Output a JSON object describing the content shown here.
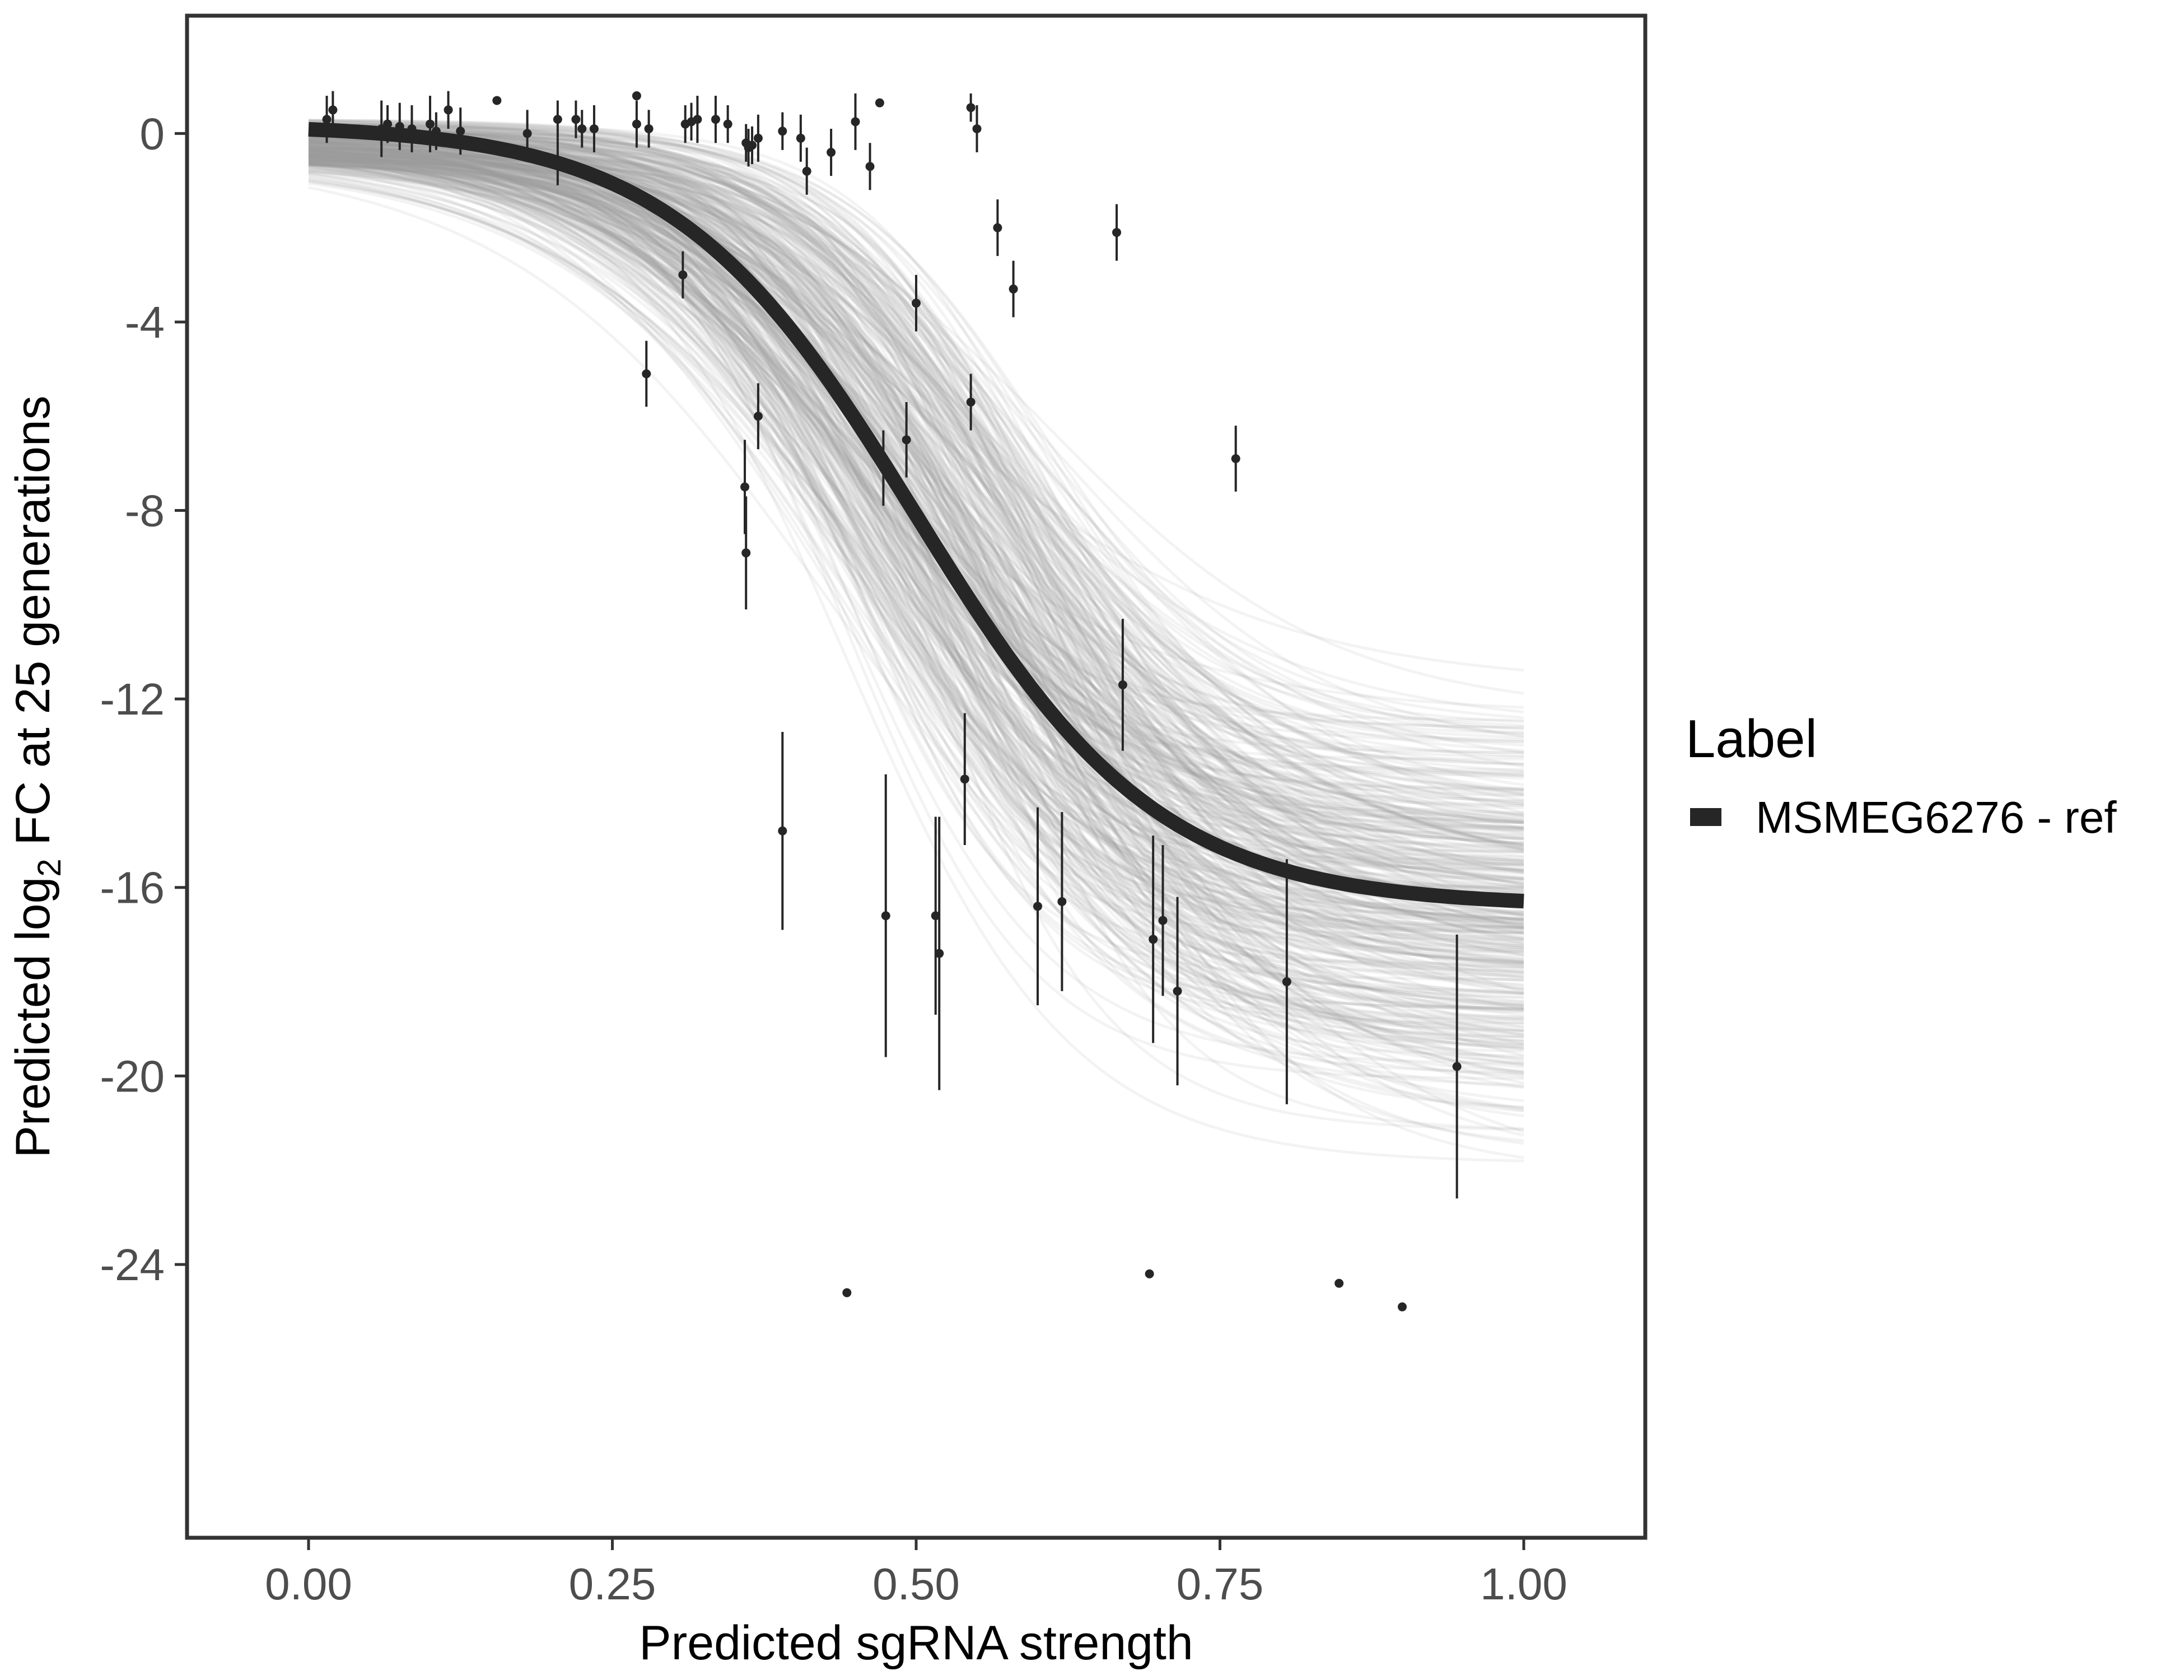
{
  "chart_data": {
    "type": "scatter",
    "title": "",
    "xlabel": "Predicted sgRNA strength",
    "ylabel_parts": {
      "prefix": "Predicted  log",
      "sub": "2",
      "suffix": " FC at 25 generations"
    },
    "xlim": [
      -0.1,
      1.1
    ],
    "ylim": [
      -29.8,
      2.5
    ],
    "x_ticks": [
      0.0,
      0.25,
      0.5,
      0.75,
      1.0
    ],
    "x_tick_labels": [
      "0.00",
      "0.25",
      "0.50",
      "0.75",
      "1.00"
    ],
    "y_ticks": [
      0,
      -4,
      -8,
      -12,
      -16,
      -20,
      -24
    ],
    "y_tick_labels": [
      "0",
      "-4",
      "-8",
      "-12",
      "-16",
      "-20",
      "-24"
    ],
    "grid": false,
    "legend": {
      "title": "Label",
      "position": "right",
      "entries": [
        {
          "label": "MSMEG6276 - ref",
          "color": "#262626"
        }
      ]
    },
    "fit_curve": {
      "name": "MSMEG6276 - ref",
      "model": "logistic",
      "top": 0.2,
      "bottom": -16.4,
      "midpoint": 0.5,
      "slope": 10,
      "color": "#262626"
    },
    "posterior_draws": {
      "count": 400,
      "color": "#999999",
      "bottom_range": [
        -23.8,
        -10.2
      ],
      "midpoint_range": [
        0.43,
        0.62
      ],
      "slope_range": [
        7,
        14
      ]
    },
    "points": [
      {
        "x": 0.015,
        "y": 0.3,
        "err": 0.5
      },
      {
        "x": 0.02,
        "y": 0.5,
        "err": 0.4
      },
      {
        "x": 0.06,
        "y": 0.1,
        "err": 0.6
      },
      {
        "x": 0.065,
        "y": 0.2,
        "err": 0.4
      },
      {
        "x": 0.075,
        "y": 0.15,
        "err": 0.5
      },
      {
        "x": 0.085,
        "y": 0.1,
        "err": 0.5
      },
      {
        "x": 0.1,
        "y": 0.2,
        "err": 0.6
      },
      {
        "x": 0.105,
        "y": 0.05,
        "err": 0.4
      },
      {
        "x": 0.115,
        "y": 0.5,
        "err": 0.4
      },
      {
        "x": 0.125,
        "y": 0.05,
        "err": 0.5
      },
      {
        "x": 0.155,
        "y": 0.7,
        "err": null
      },
      {
        "x": 0.18,
        "y": 0.0,
        "err": 0.5
      },
      {
        "x": 0.205,
        "y": 0.3,
        "err": 0.4
      },
      {
        "x": 0.205,
        "y": -0.6,
        "err": 0.5
      },
      {
        "x": 0.22,
        "y": 0.3,
        "err": 0.4
      },
      {
        "x": 0.225,
        "y": 0.1,
        "err": 0.4
      },
      {
        "x": 0.235,
        "y": 0.1,
        "err": 0.5
      },
      {
        "x": 0.27,
        "y": 0.8,
        "err": null
      },
      {
        "x": 0.27,
        "y": 0.2,
        "err": 0.5
      },
      {
        "x": 0.28,
        "y": 0.1,
        "err": 0.4
      },
      {
        "x": 0.278,
        "y": -5.1,
        "err": 0.7
      },
      {
        "x": 0.308,
        "y": -3.0,
        "err": 0.5
      },
      {
        "x": 0.31,
        "y": 0.2,
        "err": 0.4
      },
      {
        "x": 0.315,
        "y": 0.25,
        "err": 0.4
      },
      {
        "x": 0.32,
        "y": 0.3,
        "err": 0.5
      },
      {
        "x": 0.335,
        "y": 0.3,
        "err": 0.5
      },
      {
        "x": 0.345,
        "y": 0.2,
        "err": 0.4
      },
      {
        "x": 0.36,
        "y": -0.2,
        "err": 0.4
      },
      {
        "x": 0.362,
        "y": -0.3,
        "err": 0.4
      },
      {
        "x": 0.365,
        "y": -0.25,
        "err": 0.4
      },
      {
        "x": 0.37,
        "y": -0.1,
        "err": 0.5
      },
      {
        "x": 0.359,
        "y": -7.5,
        "err": 1.0
      },
      {
        "x": 0.36,
        "y": -8.9,
        "err": 1.2
      },
      {
        "x": 0.37,
        "y": -6.0,
        "err": 0.7
      },
      {
        "x": 0.39,
        "y": 0.05,
        "err": 0.4
      },
      {
        "x": 0.39,
        "y": -14.8,
        "err": 2.1
      },
      {
        "x": 0.405,
        "y": -0.1,
        "err": 0.5
      },
      {
        "x": 0.41,
        "y": -0.8,
        "err": 0.5
      },
      {
        "x": 0.43,
        "y": -0.4,
        "err": 0.5
      },
      {
        "x": 0.443,
        "y": -24.6,
        "err": null
      },
      {
        "x": 0.45,
        "y": 0.25,
        "err": 0.6
      },
      {
        "x": 0.462,
        "y": -0.7,
        "err": 0.5
      },
      {
        "x": 0.47,
        "y": 0.65,
        "err": null
      },
      {
        "x": 0.473,
        "y": -7.1,
        "err": 0.8
      },
      {
        "x": 0.475,
        "y": -16.6,
        "err": 3.0
      },
      {
        "x": 0.492,
        "y": -6.5,
        "err": 0.8
      },
      {
        "x": 0.5,
        "y": -3.6,
        "err": 0.6
      },
      {
        "x": 0.516,
        "y": -16.6,
        "err": 2.1
      },
      {
        "x": 0.519,
        "y": -17.4,
        "err": 2.9
      },
      {
        "x": 0.54,
        "y": -13.7,
        "err": 1.4
      },
      {
        "x": 0.545,
        "y": 0.55,
        "err": 0.3
      },
      {
        "x": 0.545,
        "y": -5.7,
        "err": 0.6
      },
      {
        "x": 0.55,
        "y": 0.1,
        "err": 0.5
      },
      {
        "x": 0.567,
        "y": -2.0,
        "err": 0.6
      },
      {
        "x": 0.58,
        "y": -3.3,
        "err": 0.6
      },
      {
        "x": 0.6,
        "y": -16.4,
        "err": 2.1
      },
      {
        "x": 0.62,
        "y": -16.3,
        "err": 1.9
      },
      {
        "x": 0.665,
        "y": -2.1,
        "err": 0.6
      },
      {
        "x": 0.67,
        "y": -11.7,
        "err": 1.4
      },
      {
        "x": 0.692,
        "y": -24.2,
        "err": null
      },
      {
        "x": 0.695,
        "y": -17.1,
        "err": 2.2
      },
      {
        "x": 0.703,
        "y": -16.7,
        "err": 1.6
      },
      {
        "x": 0.715,
        "y": -18.2,
        "err": 2.0
      },
      {
        "x": 0.763,
        "y": -6.9,
        "err": 0.7
      },
      {
        "x": 0.805,
        "y": -18.0,
        "err": 2.6
      },
      {
        "x": 0.848,
        "y": -24.4,
        "err": null
      },
      {
        "x": 0.9,
        "y": -24.9,
        "err": null
      },
      {
        "x": 0.945,
        "y": -19.8,
        "err": 2.8
      }
    ]
  }
}
